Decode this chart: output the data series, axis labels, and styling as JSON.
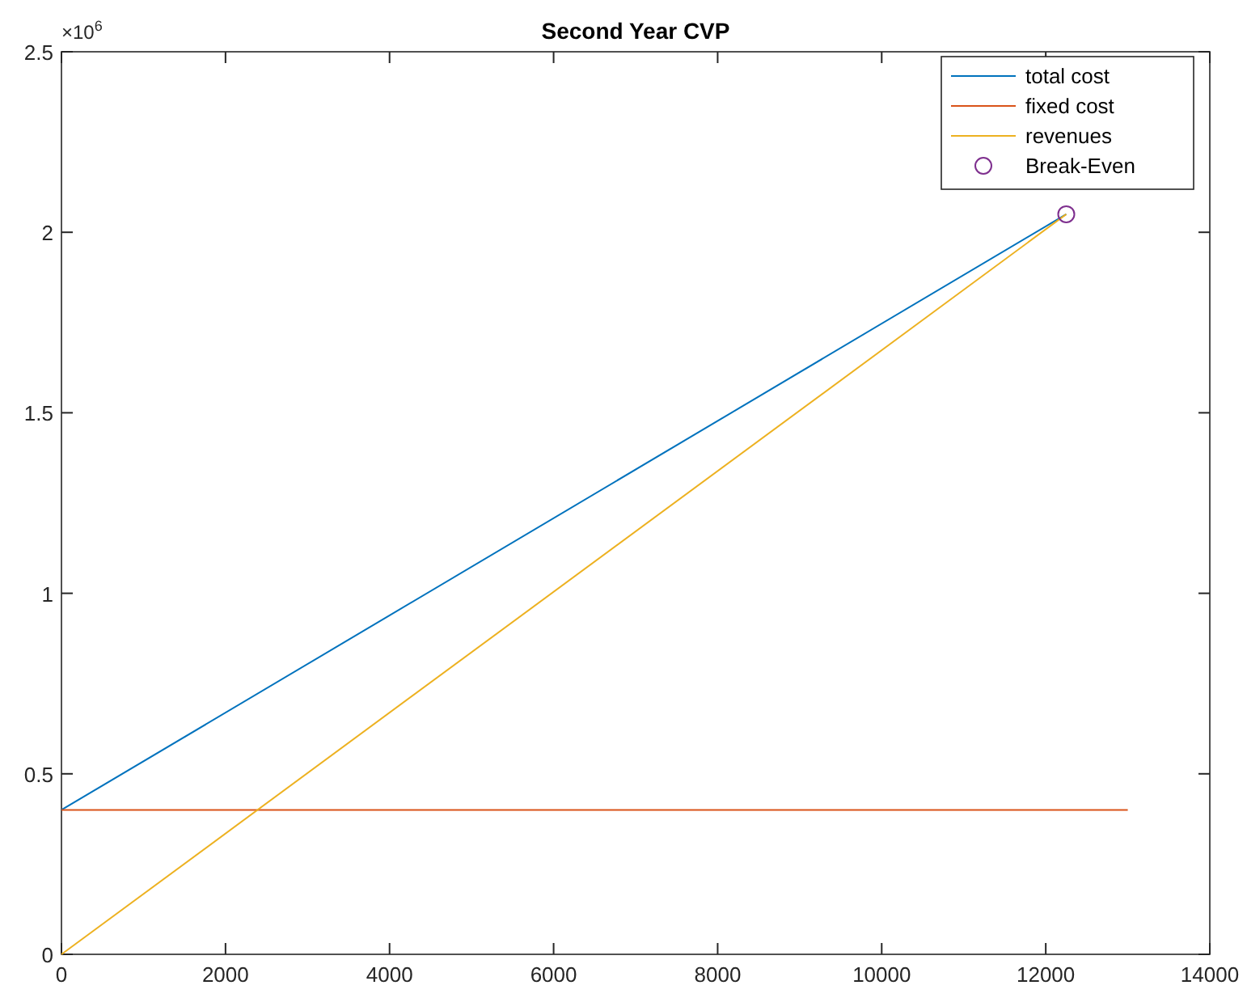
{
  "chart_data": {
    "type": "line",
    "title": "Second Year CVP",
    "xlim": [
      0,
      14000
    ],
    "xticks": [
      0,
      2000,
      4000,
      6000,
      8000,
      10000,
      12000,
      14000
    ],
    "ylim": [
      0,
      2.5
    ],
    "yticks": [
      0,
      0.5,
      1,
      1.5,
      2,
      2.5
    ],
    "annotations": [
      "×10$^{6}$"
    ],
    "legend": "top right",
    "grid": false,
    "series": [
      {
        "name": "total cost",
        "color": "#0072bd",
        "x": [
          0,
          12250
        ],
        "values": [
          0.4,
          2.05
        ]
      },
      {
        "name": "fixed cost",
        "color": "#d95319",
        "x": [
          0,
          13000
        ],
        "values": [
          0.4,
          0.4
        ]
      },
      {
        "name": "revenues",
        "color": "#edb120",
        "x": [
          0,
          12250
        ],
        "values": [
          0,
          2.05
        ]
      },
      {
        "name": "Break-Even",
        "type": "scatter",
        "marker": "circle",
        "color": "#7e2f8e",
        "x": [
          12250
        ],
        "values": [
          2.05
        ]
      }
    ]
  }
}
